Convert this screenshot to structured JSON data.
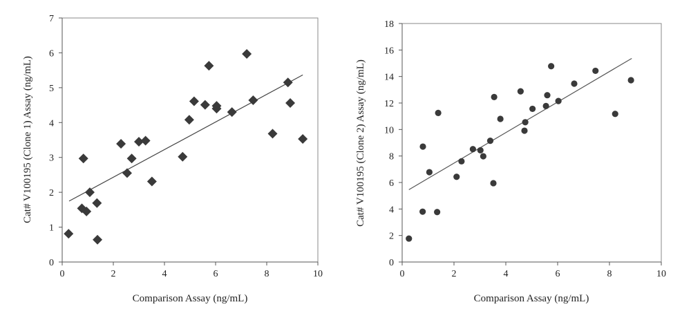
{
  "chart_data": [
    {
      "type": "scatter",
      "marker": "diamond",
      "marker_color": "#3a3a3a",
      "trendline_color": "#444444",
      "xlabel": "Comparison Assay (ng/mL)",
      "ylabel": "Cat# V100195 (Clone 1) Assay (ng/mL)",
      "xlim": [
        0,
        10
      ],
      "ylim": [
        0,
        7
      ],
      "xticks": [
        "0",
        "2",
        "4",
        "6",
        "8",
        "10"
      ],
      "yticks": [
        "0",
        "1",
        "2",
        "3",
        "4",
        "5",
        "6",
        "7"
      ],
      "grid": false,
      "trendline": {
        "slope": 0.396,
        "intercept": 1.64,
        "x_range": [
          0.27,
          9.41
        ]
      },
      "points": [
        [
          0.25,
          0.81
        ],
        [
          0.83,
          2.97
        ],
        [
          0.77,
          1.54
        ],
        [
          0.95,
          1.45
        ],
        [
          1.08,
          2.0
        ],
        [
          1.36,
          1.69
        ],
        [
          1.38,
          0.64
        ],
        [
          2.3,
          3.39
        ],
        [
          2.54,
          2.55
        ],
        [
          2.72,
          2.97
        ],
        [
          3.0,
          3.45
        ],
        [
          3.26,
          3.48
        ],
        [
          3.51,
          2.31
        ],
        [
          4.71,
          3.02
        ],
        [
          4.97,
          4.08
        ],
        [
          5.16,
          4.61
        ],
        [
          5.59,
          4.51
        ],
        [
          5.74,
          5.63
        ],
        [
          6.04,
          4.48
        ],
        [
          6.04,
          4.4
        ],
        [
          6.64,
          4.3
        ],
        [
          7.22,
          5.97
        ],
        [
          7.47,
          4.64
        ],
        [
          8.23,
          3.68
        ],
        [
          8.83,
          5.15
        ],
        [
          8.92,
          4.56
        ],
        [
          9.41,
          3.53
        ]
      ]
    },
    {
      "type": "scatter",
      "marker": "circle",
      "marker_color": "#3a3a3a",
      "trendline_color": "#555555",
      "xlabel": "Comparison Assay (ng/mL)",
      "ylabel": "Cat# V100195 (Clone 2) Assay (ng/mL)",
      "xlim": [
        0,
        10
      ],
      "ylim": [
        0,
        18
      ],
      "xticks": [
        "0",
        "2",
        "4",
        "6",
        "8",
        "10"
      ],
      "yticks": [
        "0",
        "2",
        "4",
        "6",
        "8",
        "10",
        "12",
        "14",
        "16",
        "18"
      ],
      "grid": false,
      "trendline": {
        "slope": 1.152,
        "intercept": 5.16,
        "x_range": [
          0.26,
          8.86
        ]
      },
      "points": [
        [
          0.26,
          1.77
        ],
        [
          0.79,
          3.8
        ],
        [
          1.35,
          3.77
        ],
        [
          1.05,
          6.78
        ],
        [
          0.8,
          8.71
        ],
        [
          1.39,
          11.25
        ],
        [
          2.1,
          6.43
        ],
        [
          2.29,
          7.6
        ],
        [
          2.73,
          8.52
        ],
        [
          3.02,
          8.43
        ],
        [
          3.13,
          7.98
        ],
        [
          3.4,
          9.15
        ],
        [
          3.52,
          5.95
        ],
        [
          3.55,
          12.45
        ],
        [
          3.79,
          10.8
        ],
        [
          4.57,
          12.88
        ],
        [
          4.75,
          10.55
        ],
        [
          4.72,
          9.91
        ],
        [
          5.03,
          11.56
        ],
        [
          5.75,
          14.78
        ],
        [
          5.6,
          12.59
        ],
        [
          5.55,
          11.77
        ],
        [
          6.03,
          12.15
        ],
        [
          6.64,
          13.46
        ],
        [
          7.46,
          14.43
        ],
        [
          8.83,
          13.72
        ],
        [
          8.22,
          11.18
        ]
      ]
    }
  ]
}
